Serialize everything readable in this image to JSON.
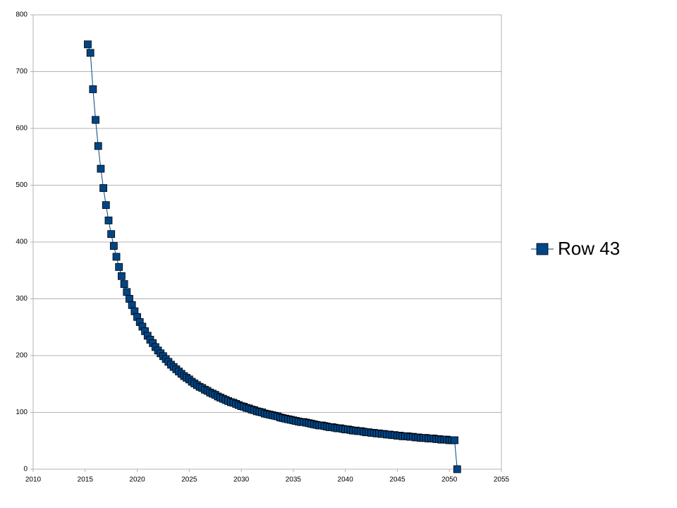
{
  "chart_data": {
    "type": "line",
    "x": [
      2015.25,
      2015.5,
      2015.75,
      2016,
      2016.25,
      2016.5,
      2016.75,
      2017,
      2017.25,
      2017.5,
      2017.75,
      2018,
      2018.25,
      2018.5,
      2018.75,
      2019,
      2019.25,
      2019.5,
      2019.75,
      2020,
      2020.25,
      2020.5,
      2020.75,
      2021,
      2021.25,
      2021.5,
      2021.75,
      2022,
      2022.25,
      2022.5,
      2022.75,
      2023,
      2023.25,
      2023.5,
      2023.75,
      2024,
      2024.25,
      2024.5,
      2024.75,
      2025,
      2025.25,
      2025.5,
      2025.75,
      2026,
      2026.25,
      2026.5,
      2026.75,
      2027,
      2027.25,
      2027.5,
      2027.75,
      2028,
      2028.25,
      2028.5,
      2028.75,
      2029,
      2029.25,
      2029.5,
      2029.75,
      2030,
      2030.25,
      2030.5,
      2030.75,
      2031,
      2031.25,
      2031.5,
      2031.75,
      2032,
      2032.25,
      2032.5,
      2032.75,
      2033,
      2033.25,
      2033.5,
      2033.75,
      2034,
      2034.25,
      2034.5,
      2034.75,
      2035,
      2035.25,
      2035.5,
      2035.75,
      2036,
      2036.25,
      2036.5,
      2036.75,
      2037,
      2037.25,
      2037.5,
      2037.75,
      2038,
      2038.25,
      2038.5,
      2038.75,
      2039,
      2039.25,
      2039.5,
      2039.75,
      2040,
      2040.25,
      2040.5,
      2040.75,
      2041,
      2041.25,
      2041.5,
      2041.75,
      2042,
      2042.25,
      2042.5,
      2042.75,
      2043,
      2043.25,
      2043.5,
      2043.75,
      2044,
      2044.25,
      2044.5,
      2044.75,
      2045,
      2045.25,
      2045.5,
      2045.75,
      2046,
      2046.25,
      2046.5,
      2046.75,
      2047,
      2047.25,
      2047.5,
      2047.75,
      2048,
      2048.25,
      2048.5,
      2048.75,
      2049,
      2049.25,
      2049.5,
      2049.75,
      2050,
      2050.25,
      2050.5,
      2050.75
    ],
    "series": [
      {
        "name": "Row 43",
        "color": "#004586",
        "values": [
          748,
          733,
          669,
          615,
          569,
          529,
          495,
          465,
          438,
          414,
          393,
          374,
          356,
          340,
          326,
          312,
          300,
          289,
          278,
          268,
          259,
          251,
          243,
          235,
          228,
          222,
          215,
          209,
          204,
          199,
          194,
          189,
          184,
          180,
          176,
          172,
          168,
          164,
          161,
          158,
          154,
          151,
          148,
          145,
          143,
          140,
          138,
          135,
          133,
          131,
          128,
          126,
          124,
          122,
          120,
          118,
          117,
          115,
          113,
          111,
          110,
          108,
          107,
          105,
          104,
          102,
          101,
          100,
          98,
          97,
          96,
          95,
          94,
          93,
          91,
          90,
          89,
          88,
          87,
          86,
          85,
          84,
          83,
          83,
          82,
          81,
          80,
          79,
          78,
          77,
          77,
          76,
          75,
          74,
          74,
          73,
          72,
          72,
          71,
          70,
          70,
          69,
          68,
          68,
          67,
          67,
          66,
          65,
          65,
          64,
          64,
          63,
          63,
          62,
          62,
          61,
          61,
          60,
          60,
          59,
          59,
          58,
          58,
          58,
          57,
          57,
          56,
          56,
          55,
          55,
          55,
          54,
          54,
          54,
          53,
          53,
          52,
          52,
          52,
          51,
          51,
          51,
          0
        ]
      }
    ],
    "xlim": [
      2010,
      2055
    ],
    "xticks": [
      2010,
      2015,
      2020,
      2025,
      2030,
      2035,
      2040,
      2045,
      2050,
      2055
    ],
    "ylim": [
      0,
      800
    ],
    "yticks": [
      0,
      100,
      200,
      300,
      400,
      500,
      600,
      700,
      800
    ],
    "grid": true,
    "legend": "right"
  }
}
